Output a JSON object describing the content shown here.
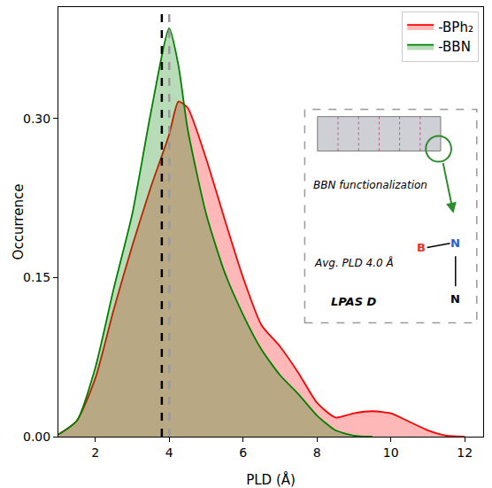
{
  "chart_data": {
    "type": "area",
    "xlabel": "PLD (Å)",
    "ylabel": "Occurrence",
    "x": [
      1.0,
      1.5,
      2.0,
      2.5,
      3.0,
      3.5,
      4.0,
      4.25,
      4.5,
      5.0,
      5.5,
      6.0,
      6.5,
      7.0,
      7.5,
      8.0,
      8.5,
      9.0,
      9.5,
      10.0,
      10.5,
      11.0,
      11.5,
      12.0
    ],
    "series": [
      {
        "name": "-BPh₂",
        "color": "#ff0000",
        "values": [
          0.002,
          0.015,
          0.055,
          0.12,
          0.18,
          0.235,
          0.285,
          0.316,
          0.31,
          0.262,
          0.205,
          0.15,
          0.105,
          0.085,
          0.06,
          0.032,
          0.018,
          0.022,
          0.024,
          0.022,
          0.014,
          0.006,
          0.001,
          0.0
        ]
      },
      {
        "name": "-BBN",
        "color": "#008000",
        "values": [
          0.002,
          0.015,
          0.065,
          0.14,
          0.21,
          0.305,
          0.385,
          0.35,
          0.29,
          0.21,
          0.155,
          0.115,
          0.082,
          0.058,
          0.04,
          0.02,
          0.006,
          0.001,
          0.0,
          null,
          null,
          null,
          null,
          null
        ]
      }
    ],
    "xlim": [
      1.0,
      12.5
    ],
    "ylim": [
      0,
      0.405
    ],
    "xticks": [
      2,
      4,
      6,
      8,
      10,
      12
    ],
    "yticks": [
      {
        "value": 0,
        "label": "0.00"
      },
      {
        "value": 0.15,
        "label": "0.15"
      },
      {
        "value": 0.3,
        "label": "0.30"
      }
    ],
    "grid": false,
    "legend": "upper right",
    "reference_lines": [
      {
        "x": 3.8,
        "color": "#000000",
        "line_style": "dashed"
      },
      {
        "x": 4.0,
        "color": "#9a9a9a",
        "line_style": "dashed"
      }
    ],
    "inset": {
      "caption": "BBN functionalization",
      "note": "Avg. PLD 4.0 Å",
      "label": "LPAS D",
      "atoms": [
        {
          "text": "B",
          "color": "#e8312a"
        },
        {
          "text": "N",
          "color": "#1f5fd6"
        },
        {
          "text": "N",
          "color": "#000000"
        }
      ]
    }
  }
}
